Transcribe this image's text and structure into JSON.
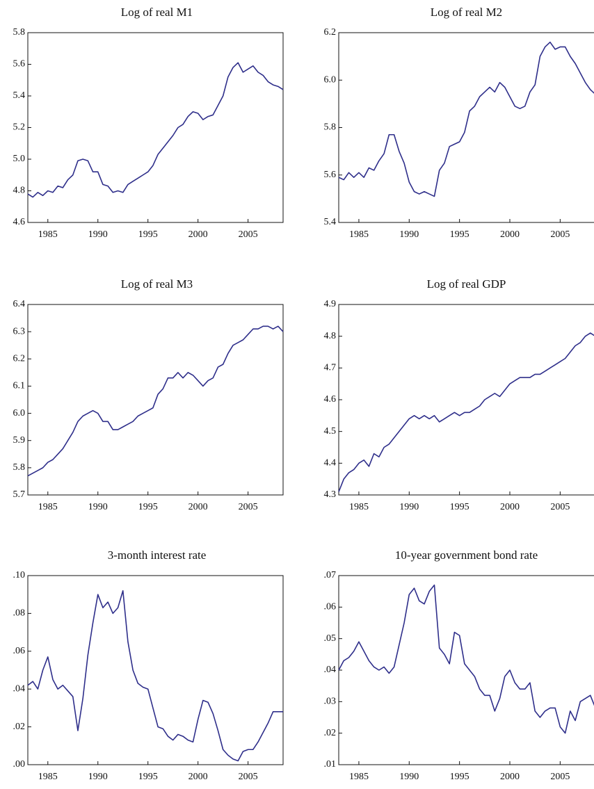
{
  "chart_data": [
    {
      "type": "line",
      "title": "Log of real M1",
      "x": [
        1983,
        1983.5,
        1984,
        1984.5,
        1985,
        1985.5,
        1986,
        1986.5,
        1987,
        1987.5,
        1988,
        1988.5,
        1989,
        1989.5,
        1990,
        1990.5,
        1991,
        1991.5,
        1992,
        1992.5,
        1993,
        1993.5,
        1994,
        1994.5,
        1995,
        1995.5,
        1996,
        1996.5,
        1997,
        1997.5,
        1998,
        1998.5,
        1999,
        1999.5,
        2000,
        2000.5,
        2001,
        2001.5,
        2002,
        2002.5,
        2003,
        2003.5,
        2004,
        2004.5,
        2005,
        2005.5,
        2006,
        2006.5,
        2007,
        2007.5,
        2008,
        2008.5
      ],
      "values": [
        4.78,
        4.76,
        4.79,
        4.77,
        4.8,
        4.79,
        4.83,
        4.82,
        4.87,
        4.9,
        4.99,
        5.0,
        4.99,
        4.92,
        4.92,
        4.84,
        4.83,
        4.79,
        4.8,
        4.79,
        4.84,
        4.86,
        4.88,
        4.9,
        4.92,
        4.96,
        5.03,
        5.07,
        5.11,
        5.15,
        5.2,
        5.22,
        5.27,
        5.3,
        5.29,
        5.25,
        5.27,
        5.28,
        5.34,
        5.4,
        5.52,
        5.58,
        5.61,
        5.55,
        5.57,
        5.59,
        5.55,
        5.53,
        5.49,
        5.47,
        5.46,
        5.44
      ],
      "color": "#2e2e8a",
      "xlim": [
        1983,
        2008.5
      ],
      "xticks": [
        1985,
        1990,
        1995,
        2000,
        2005
      ],
      "ylim": [
        4.6,
        5.8
      ],
      "yticks": [
        4.6,
        4.8,
        {
          "value": 5.0,
          "label": "5.0"
        },
        5.2,
        5.4,
        5.6,
        5.8
      ]
    },
    {
      "type": "line",
      "title": "Log of real M2",
      "x": [
        1983,
        1983.5,
        1984,
        1984.5,
        1985,
        1985.5,
        1986,
        1986.5,
        1987,
        1987.5,
        1988,
        1988.5,
        1989,
        1989.5,
        1990,
        1990.5,
        1991,
        1991.5,
        1992,
        1992.5,
        1993,
        1993.5,
        1994,
        1994.5,
        1995,
        1995.5,
        1996,
        1996.5,
        1997,
        1997.5,
        1998,
        1998.5,
        1999,
        1999.5,
        2000,
        2000.5,
        2001,
        2001.5,
        2002,
        2002.5,
        2003,
        2003.5,
        2004,
        2004.5,
        2005,
        2005.5,
        2006,
        2006.5,
        2007,
        2007.5,
        2008,
        2008.5
      ],
      "values": [
        5.59,
        5.58,
        5.61,
        5.59,
        5.61,
        5.59,
        5.63,
        5.62,
        5.66,
        5.69,
        5.77,
        5.77,
        5.7,
        5.65,
        5.57,
        5.53,
        5.52,
        5.53,
        5.52,
        5.51,
        5.62,
        5.65,
        5.72,
        5.73,
        5.74,
        5.78,
        5.87,
        5.89,
        5.93,
        5.95,
        5.97,
        5.95,
        5.99,
        5.97,
        5.93,
        5.89,
        5.88,
        5.89,
        5.95,
        5.98,
        6.1,
        6.14,
        6.16,
        6.13,
        6.14,
        6.14,
        6.1,
        6.07,
        6.03,
        5.99,
        5.96,
        5.94
      ],
      "color": "#2e2e8a",
      "xlim": [
        1983,
        2008.5
      ],
      "xticks": [
        1985,
        1990,
        1995,
        2000,
        2005
      ],
      "ylim": [
        5.4,
        6.2
      ],
      "yticks": [
        5.4,
        5.6,
        5.8,
        {
          "value": 6.0,
          "label": "6.0"
        },
        6.2
      ]
    },
    {
      "type": "line",
      "title": "Log of real M3",
      "x": [
        1983,
        1983.5,
        1984,
        1984.5,
        1985,
        1985.5,
        1986,
        1986.5,
        1987,
        1987.5,
        1988,
        1988.5,
        1989,
        1989.5,
        1990,
        1990.5,
        1991,
        1991.5,
        1992,
        1992.5,
        1993,
        1993.5,
        1994,
        1994.5,
        1995,
        1995.5,
        1996,
        1996.5,
        1997,
        1997.5,
        1998,
        1998.5,
        1999,
        1999.5,
        2000,
        2000.5,
        2001,
        2001.5,
        2002,
        2002.5,
        2003,
        2003.5,
        2004,
        2004.5,
        2005,
        2005.5,
        2006,
        2006.5,
        2007,
        2007.5,
        2008,
        2008.5
      ],
      "values": [
        5.77,
        5.78,
        5.79,
        5.8,
        5.82,
        5.83,
        5.85,
        5.87,
        5.9,
        5.93,
        5.97,
        5.99,
        6.0,
        6.01,
        6.0,
        5.97,
        5.97,
        5.94,
        5.94,
        5.95,
        5.96,
        5.97,
        5.99,
        6.0,
        6.01,
        6.02,
        6.07,
        6.09,
        6.13,
        6.13,
        6.15,
        6.13,
        6.15,
        6.14,
        6.12,
        6.1,
        6.12,
        6.13,
        6.17,
        6.18,
        6.22,
        6.25,
        6.26,
        6.27,
        6.29,
        6.31,
        6.31,
        6.32,
        6.32,
        6.31,
        6.32,
        6.3
      ],
      "color": "#2e2e8a",
      "xlim": [
        1983,
        2008.5
      ],
      "xticks": [
        1985,
        1990,
        1995,
        2000,
        2005
      ],
      "ylim": [
        5.7,
        6.4
      ],
      "yticks": [
        5.7,
        5.8,
        5.9,
        {
          "value": 6.0,
          "label": "6.0"
        },
        6.1,
        6.2,
        6.3,
        6.4
      ]
    },
    {
      "type": "line",
      "title": "Log of real GDP",
      "x": [
        1983,
        1983.5,
        1984,
        1984.5,
        1985,
        1985.5,
        1986,
        1986.5,
        1987,
        1987.5,
        1988,
        1988.5,
        1989,
        1989.5,
        1990,
        1990.5,
        1991,
        1991.5,
        1992,
        1992.5,
        1993,
        1993.5,
        1994,
        1994.5,
        1995,
        1995.5,
        1996,
        1996.5,
        1997,
        1997.5,
        1998,
        1998.5,
        1999,
        1999.5,
        2000,
        2000.5,
        2001,
        2001.5,
        2002,
        2002.5,
        2003,
        2003.5,
        2004,
        2004.5,
        2005,
        2005.5,
        2006,
        2006.5,
        2007,
        2007.5,
        2008,
        2008.5
      ],
      "values": [
        4.31,
        4.35,
        4.37,
        4.38,
        4.4,
        4.41,
        4.39,
        4.43,
        4.42,
        4.45,
        4.46,
        4.48,
        4.5,
        4.52,
        4.54,
        4.55,
        4.54,
        4.55,
        4.54,
        4.55,
        4.53,
        4.54,
        4.55,
        4.56,
        4.55,
        4.56,
        4.56,
        4.57,
        4.58,
        4.6,
        4.61,
        4.62,
        4.61,
        4.63,
        4.65,
        4.66,
        4.67,
        4.67,
        4.67,
        4.68,
        4.68,
        4.69,
        4.7,
        4.71,
        4.72,
        4.73,
        4.75,
        4.77,
        4.78,
        4.8,
        4.81,
        4.8
      ],
      "color": "#2e2e8a",
      "xlim": [
        1983,
        2008.5
      ],
      "xticks": [
        1985,
        1990,
        1995,
        2000,
        2005
      ],
      "ylim": [
        4.3,
        4.9
      ],
      "yticks": [
        4.3,
        4.4,
        4.5,
        4.6,
        4.7,
        4.8,
        4.9
      ]
    },
    {
      "type": "line",
      "title": "3-month interest rate",
      "x": [
        1983,
        1983.5,
        1984,
        1984.5,
        1985,
        1985.5,
        1986,
        1986.5,
        1987,
        1987.5,
        1988,
        1988.5,
        1989,
        1989.5,
        1990,
        1990.5,
        1991,
        1991.5,
        1992,
        1992.5,
        1993,
        1993.5,
        1994,
        1994.5,
        1995,
        1995.5,
        1996,
        1996.5,
        1997,
        1997.5,
        1998,
        1998.5,
        1999,
        1999.5,
        2000,
        2000.5,
        2001,
        2001.5,
        2002,
        2002.5,
        2003,
        2003.5,
        2004,
        2004.5,
        2005,
        2005.5,
        2006,
        2006.5,
        2007,
        2007.5,
        2008,
        2008.5
      ],
      "values": [
        0.042,
        0.044,
        0.04,
        0.05,
        0.057,
        0.045,
        0.04,
        0.042,
        0.039,
        0.036,
        0.018,
        0.035,
        0.058,
        0.075,
        0.09,
        0.083,
        0.086,
        0.08,
        0.083,
        0.092,
        0.065,
        0.05,
        0.043,
        0.041,
        0.04,
        0.03,
        0.02,
        0.019,
        0.015,
        0.013,
        0.016,
        0.015,
        0.013,
        0.012,
        0.024,
        0.034,
        0.033,
        0.027,
        0.018,
        0.008,
        0.005,
        0.003,
        0.002,
        0.007,
        0.008,
        0.008,
        0.012,
        0.017,
        0.022,
        0.028,
        0.028,
        0.028
      ],
      "color": "#2e2e8a",
      "xlim": [
        1983,
        2008.5
      ],
      "xticks": [
        1985,
        1990,
        1995,
        2000,
        2005
      ],
      "ylim": [
        0,
        0.1
      ],
      "yticks": [
        {
          "value": 0,
          "label": ".00"
        },
        {
          "value": 0.02,
          "label": ".02"
        },
        {
          "value": 0.04,
          "label": ".04"
        },
        {
          "value": 0.06,
          "label": ".06"
        },
        {
          "value": 0.08,
          "label": ".08"
        },
        {
          "value": 0.1,
          "label": ".10"
        }
      ]
    },
    {
      "type": "line",
      "title": "10-year government bond rate",
      "x": [
        1983,
        1983.5,
        1984,
        1984.5,
        1985,
        1985.5,
        1986,
        1986.5,
        1987,
        1987.5,
        1988,
        1988.5,
        1989,
        1989.5,
        1990,
        1990.5,
        1991,
        1991.5,
        1992,
        1992.5,
        1993,
        1993.5,
        1994,
        1994.5,
        1995,
        1995.5,
        1996,
        1996.5,
        1997,
        1997.5,
        1998,
        1998.5,
        1999,
        1999.5,
        2000,
        2000.5,
        2001,
        2001.5,
        2002,
        2002.5,
        2003,
        2003.5,
        2004,
        2004.5,
        2005,
        2005.5,
        2006,
        2006.5,
        2007,
        2007.5,
        2008,
        2008.5
      ],
      "values": [
        0.04,
        0.043,
        0.044,
        0.046,
        0.049,
        0.046,
        0.043,
        0.041,
        0.04,
        0.041,
        0.039,
        0.041,
        0.048,
        0.055,
        0.064,
        0.066,
        0.062,
        0.061,
        0.065,
        0.067,
        0.047,
        0.045,
        0.042,
        0.052,
        0.051,
        0.042,
        0.04,
        0.038,
        0.034,
        0.032,
        0.032,
        0.027,
        0.031,
        0.038,
        0.04,
        0.036,
        0.034,
        0.034,
        0.036,
        0.027,
        0.025,
        0.027,
        0.028,
        0.028,
        0.022,
        0.02,
        0.027,
        0.024,
        0.03,
        0.031,
        0.032,
        0.028
      ],
      "color": "#2e2e8a",
      "xlim": [
        1983,
        2008.5
      ],
      "xticks": [
        1985,
        1990,
        1995,
        2000,
        2005
      ],
      "ylim": [
        0.01,
        0.07
      ],
      "yticks": [
        {
          "value": 0.01,
          "label": ".01"
        },
        {
          "value": 0.02,
          "label": ".02"
        },
        {
          "value": 0.03,
          "label": ".03"
        },
        {
          "value": 0.04,
          "label": ".04"
        },
        {
          "value": 0.05,
          "label": ".05"
        },
        {
          "value": 0.06,
          "label": ".06"
        },
        {
          "value": 0.07,
          "label": ".07"
        }
      ]
    }
  ]
}
